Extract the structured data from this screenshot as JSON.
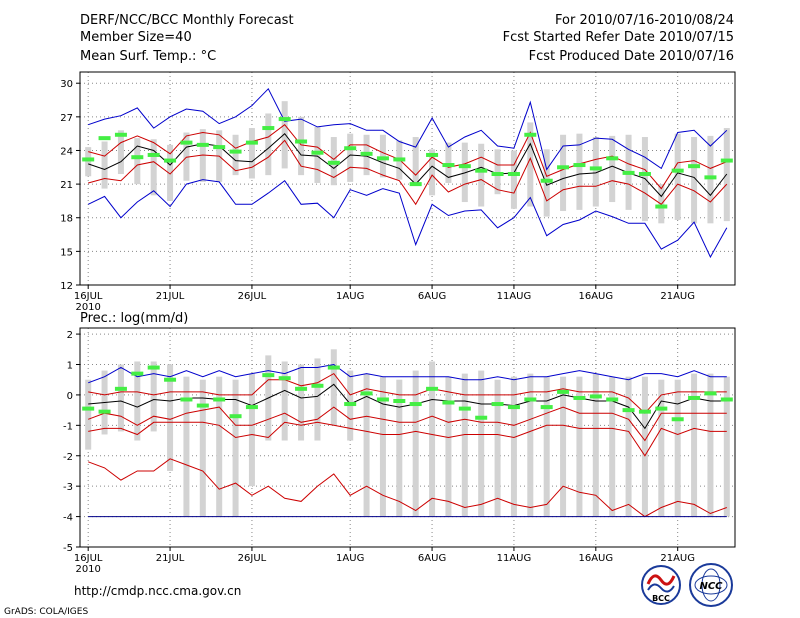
{
  "header": {
    "left": [
      "DERF/NCC/BCC Monthly Forecast",
      "Member Size=40",
      "Mean Surf. Temp.: °C"
    ],
    "right": [
      "For 2010/07/16-2010/08/24",
      "Fcst Started Refer Date 2010/07/15",
      "Fcst Produced Date 2010/07/16"
    ]
  },
  "footer": {
    "url": "http://cmdp.ncc.cma.gov.cn",
    "credit": "GrADS: COLA/IGES",
    "logo1_text": "BCC",
    "logo2_text": "NCC"
  },
  "colors": {
    "box": "#d3d3d3",
    "median": "#44ee44",
    "mean": "#000000",
    "inner_band": "#cc0000",
    "outer_band": "#0000cc",
    "floor": "#000088",
    "grid": "#888888"
  },
  "chart_data": [
    {
      "type": "boxplot",
      "title": "Mean Surf. Temp.: °C",
      "ylabel": "°C",
      "ylim": [
        12,
        31
      ],
      "yticks": [
        12,
        15,
        18,
        21,
        24,
        27,
        30
      ],
      "xlim": [
        0.5,
        40.5
      ],
      "xticks": [
        {
          "day": 1,
          "label": "16JUL",
          "sub": "2010"
        },
        {
          "day": 6,
          "label": "21JUL"
        },
        {
          "day": 11,
          "label": "26JUL"
        },
        {
          "day": 17,
          "label": "1AUG"
        },
        {
          "day": 22,
          "label": "6AUG"
        },
        {
          "day": 27,
          "label": "11AUG"
        },
        {
          "day": 32,
          "label": "16AUG"
        },
        {
          "day": 37,
          "label": "21AUG"
        }
      ],
      "series": {
        "box_low": [
          21.7,
          20.6,
          21.9,
          21.0,
          20.0,
          19.5,
          21.3,
          21.2,
          21.2,
          21.8,
          21.5,
          21.8,
          22.4,
          21.8,
          21.1,
          20.9,
          21.2,
          21.8,
          21.6,
          21.4,
          21.1,
          20.0,
          21.1,
          19.4,
          19.0,
          20.1,
          18.8,
          19.0,
          18.1,
          18.6,
          18.7,
          19.0,
          19.4,
          18.7,
          17.7,
          17.5,
          17.8,
          17.5,
          17.5,
          17.7
        ],
        "box_high": [
          24.3,
          24.8,
          25.8,
          25.1,
          25.0,
          24.5,
          25.6,
          25.9,
          25.8,
          25.4,
          26.0,
          27.3,
          28.4,
          27.0,
          26.1,
          25.2,
          25.5,
          25.4,
          25.4,
          24.9,
          25.2,
          24.1,
          24.7,
          24.7,
          24.6,
          24.1,
          24.0,
          26.5,
          24.1,
          25.4,
          25.5,
          25.2,
          25.3,
          25.4,
          25.2,
          21.0,
          25.5,
          25.2,
          25.3,
          26.0
        ],
        "median": [
          23.2,
          25.1,
          25.4,
          23.4,
          23.6,
          23.1,
          24.7,
          24.5,
          24.3,
          23.9,
          24.7,
          26.0,
          26.8,
          24.8,
          23.8,
          22.9,
          24.2,
          23.7,
          23.3,
          23.2,
          21.0,
          23.6,
          22.7,
          22.6,
          22.2,
          21.9,
          21.9,
          25.4,
          21.3,
          22.5,
          22.7,
          22.4,
          23.3,
          22.0,
          21.9,
          19.0,
          22.2,
          22.6,
          21.6,
          23.1
        ],
        "mean": [
          22.8,
          22.3,
          23.0,
          24.4,
          24.0,
          22.7,
          24.3,
          24.6,
          24.4,
          23.1,
          23.0,
          24.2,
          25.5,
          23.6,
          23.5,
          22.4,
          23.6,
          23.5,
          22.9,
          22.4,
          21.0,
          22.6,
          21.6,
          22.0,
          22.5,
          21.9,
          22.0,
          24.6,
          20.9,
          21.5,
          21.9,
          22.0,
          22.6,
          22.0,
          21.5,
          19.9,
          22.0,
          21.6,
          20.0,
          21.9
        ],
        "inner_upper": [
          23.9,
          23.5,
          24.7,
          25.3,
          24.7,
          23.7,
          25.3,
          25.6,
          25.4,
          24.2,
          24.8,
          25.2,
          26.3,
          24.5,
          24.3,
          23.2,
          24.5,
          24.5,
          23.8,
          23.2,
          21.8,
          23.4,
          22.5,
          22.8,
          23.4,
          22.7,
          22.7,
          25.6,
          21.7,
          22.3,
          22.8,
          23.2,
          23.5,
          22.8,
          22.3,
          20.6,
          22.9,
          23.1,
          22.4,
          23.0
        ],
        "inner_lower": [
          21.1,
          21.5,
          21.3,
          22.7,
          23.0,
          21.9,
          23.4,
          23.6,
          23.5,
          22.2,
          22.5,
          23.4,
          24.9,
          22.6,
          22.3,
          21.6,
          22.5,
          22.4,
          21.8,
          21.3,
          19.2,
          21.8,
          20.3,
          21.0,
          21.4,
          20.5,
          20.2,
          23.3,
          19.5,
          20.5,
          20.8,
          20.8,
          21.3,
          21.0,
          20.2,
          19.2,
          21.0,
          20.4,
          19.4,
          21.0
        ],
        "outer_upper": [
          26.3,
          26.8,
          27.1,
          27.8,
          26.0,
          27.0,
          27.7,
          27.5,
          26.4,
          27.0,
          28.0,
          29.5,
          26.6,
          26.8,
          26.1,
          26.3,
          26.4,
          25.8,
          25.8,
          24.8,
          24.3,
          26.9,
          24.3,
          25.2,
          25.8,
          24.4,
          24.2,
          28.3,
          22.3,
          24.4,
          24.5,
          25.1,
          25.0,
          24.1,
          23.4,
          22.4,
          25.6,
          25.8,
          24.4,
          25.8
        ],
        "outer_lower": [
          19.2,
          19.9,
          18.0,
          19.4,
          20.4,
          19.0,
          21.0,
          21.4,
          21.2,
          19.2,
          19.2,
          20.2,
          21.3,
          19.2,
          19.3,
          18.0,
          20.5,
          20.0,
          20.6,
          20.2,
          15.6,
          19.2,
          18.2,
          18.6,
          18.7,
          17.1,
          18.0,
          19.8,
          16.4,
          17.4,
          17.8,
          18.6,
          18.1,
          17.5,
          17.5,
          15.2,
          16.0,
          17.6,
          14.5,
          17.1
        ]
      }
    },
    {
      "type": "boxplot",
      "title": "Prec.: log(mm/d)",
      "ylabel": "log(mm/d)",
      "ylim": [
        -5,
        2.2
      ],
      "yticks": [
        -5,
        -4,
        -3,
        -2,
        -1,
        0,
        1,
        2
      ],
      "xlim": [
        0.5,
        40.5
      ],
      "xticks": [
        {
          "day": 1,
          "label": "16JUL",
          "sub": "2010"
        },
        {
          "day": 6,
          "label": "21JUL"
        },
        {
          "day": 11,
          "label": "26JUL"
        },
        {
          "day": 17,
          "label": "1AUG"
        },
        {
          "day": 22,
          "label": "6AUG"
        },
        {
          "day": 27,
          "label": "11AUG"
        },
        {
          "day": 32,
          "label": "16AUG"
        },
        {
          "day": 37,
          "label": "21AUG"
        }
      ],
      "series": {
        "box_low": [
          -1.8,
          -1.3,
          -1.2,
          -1.5,
          -1.2,
          -2.5,
          -4.0,
          -4.0,
          -4.0,
          -4.0,
          -3.0,
          -1.5,
          -1.5,
          -1.5,
          -1.5,
          -1.0,
          -1.5,
          -4.0,
          -4.0,
          -4.0,
          -4.0,
          -4.0,
          -4.0,
          -4.0,
          -4.0,
          -4.0,
          -4.0,
          -4.0,
          -4.0,
          -4.0,
          -4.0,
          -4.0,
          -4.0,
          -4.0,
          -4.0,
          -4.0,
          -4.0,
          -4.0,
          -4.0,
          -4.0
        ],
        "box_high": [
          0.5,
          0.8,
          1.0,
          1.1,
          1.1,
          1.0,
          0.6,
          0.5,
          0.6,
          0.5,
          0.7,
          1.3,
          1.1,
          1.0,
          1.2,
          1.5,
          0.8,
          0.7,
          0.6,
          0.5,
          0.8,
          1.1,
          0.6,
          0.7,
          0.8,
          0.5,
          0.6,
          0.7,
          0.6,
          0.6,
          0.6,
          0.7,
          0.6,
          0.6,
          0.6,
          0.5,
          0.5,
          0.7,
          0.7,
          0.6
        ],
        "median": [
          -0.45,
          -0.55,
          0.2,
          0.7,
          0.9,
          0.5,
          -0.15,
          -0.35,
          -0.15,
          -0.7,
          -0.4,
          0.65,
          0.55,
          0.2,
          0.3,
          0.9,
          -0.3,
          0.05,
          -0.15,
          -0.2,
          -0.3,
          0.2,
          -0.25,
          -0.45,
          -0.75,
          -0.3,
          -0.4,
          -0.15,
          -0.4,
          0.1,
          -0.1,
          -0.05,
          -0.15,
          -0.5,
          -0.55,
          -0.45,
          -0.8,
          -0.1,
          0.05,
          -0.15
        ],
        "mean": [
          -0.3,
          -0.25,
          -0.2,
          -0.4,
          -0.15,
          -0.2,
          -0.1,
          -0.1,
          -0.15,
          -0.15,
          -0.35,
          -0.1,
          0.15,
          -0.1,
          -0.05,
          0.35,
          -0.3,
          -0.05,
          -0.3,
          -0.4,
          -0.3,
          -0.15,
          -0.2,
          -0.2,
          -0.3,
          -0.3,
          -0.35,
          -0.2,
          -0.2,
          0.0,
          -0.1,
          -0.2,
          -0.2,
          -0.4,
          -1.1,
          -0.2,
          -0.3,
          -0.1,
          -0.2,
          -0.2
        ],
        "inner_upper": [
          0.1,
          0.0,
          0.1,
          0.1,
          0.0,
          0.1,
          0.1,
          0.1,
          0.0,
          0.0,
          0.0,
          0.5,
          0.5,
          0.3,
          0.4,
          0.7,
          0.0,
          0.2,
          0.1,
          0.0,
          0.0,
          0.2,
          0.1,
          0.0,
          0.0,
          0.0,
          0.0,
          0.1,
          0.1,
          0.2,
          0.1,
          0.1,
          0.1,
          -0.1,
          -0.6,
          0.0,
          0.1,
          0.1,
          0.1,
          0.1
        ],
        "inner_lower": [
          -0.8,
          -0.6,
          -0.7,
          -1.0,
          -0.7,
          -0.8,
          -0.6,
          -0.5,
          -0.4,
          -1.0,
          -1.0,
          -0.8,
          -0.6,
          -0.9,
          -0.8,
          -0.4,
          -0.8,
          -0.7,
          -0.8,
          -0.9,
          -0.9,
          -0.7,
          -0.9,
          -0.8,
          -0.9,
          -0.9,
          -1.0,
          -0.8,
          -0.6,
          -0.4,
          -0.6,
          -0.6,
          -0.6,
          -0.8,
          -1.5,
          -0.6,
          -0.6,
          -0.6,
          -0.6,
          -0.6
        ],
        "inner_low2": [
          -1.2,
          -1.1,
          -1.1,
          -1.3,
          -0.9,
          -0.9,
          -0.9,
          -0.9,
          -1.0,
          -1.4,
          -1.3,
          -1.4,
          -0.9,
          -1.0,
          -0.9,
          -1.0,
          -1.1,
          -1.2,
          -1.3,
          -1.3,
          -1.2,
          -1.3,
          -1.4,
          -1.3,
          -1.3,
          -1.3,
          -1.4,
          -1.2,
          -1.0,
          -1.0,
          -1.1,
          -1.1,
          -1.1,
          -1.2,
          -2.0,
          -1.1,
          -1.3,
          -1.1,
          -1.2,
          -1.2
        ],
        "outer_upper": [
          0.4,
          0.6,
          0.9,
          0.6,
          0.7,
          0.6,
          0.8,
          0.6,
          0.8,
          0.6,
          0.7,
          0.8,
          0.7,
          0.9,
          0.9,
          1.0,
          0.6,
          0.7,
          0.6,
          0.6,
          0.6,
          0.6,
          0.6,
          0.5,
          0.5,
          0.6,
          0.5,
          0.6,
          0.6,
          0.7,
          0.8,
          0.7,
          0.6,
          0.5,
          0.7,
          0.7,
          0.6,
          0.8,
          0.6,
          0.6
        ],
        "outer_lower": [
          -2.2,
          -2.4,
          -2.8,
          -2.5,
          -2.5,
          -2.1,
          -2.3,
          -2.5,
          -3.1,
          -2.9,
          -3.3,
          -3.0,
          -3.4,
          -3.5,
          -3.0,
          -2.6,
          -3.3,
          -3.0,
          -3.3,
          -3.5,
          -3.8,
          -3.4,
          -3.5,
          -3.7,
          -3.6,
          -3.4,
          -3.6,
          -3.7,
          -3.6,
          -3.0,
          -3.2,
          -3.3,
          -3.8,
          -3.6,
          -4.0,
          -3.7,
          -3.5,
          -3.6,
          -3.9,
          -3.7
        ],
        "floor": -4.0
      }
    }
  ]
}
